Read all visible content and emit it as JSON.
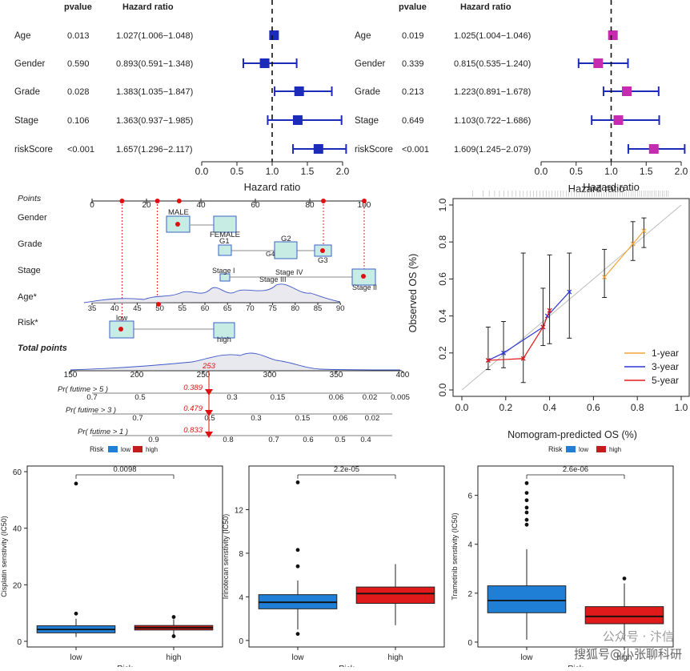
{
  "chart_data": [
    {
      "type": "forest",
      "id": "forest_univariate",
      "headers": {
        "pvalue": "pvalue",
        "hr": "Hazard ratio"
      },
      "xlabel": "Hazard ratio",
      "xlim": [
        0,
        2.0
      ],
      "ticks": [
        "0.0",
        "0.5",
        "1.0",
        "1.5",
        "2.0"
      ],
      "ref_line": 1.0,
      "color": "#1c2bb8",
      "rows": [
        {
          "label": "Age",
          "pvalue": "0.013",
          "hr_text": "1.027(1.006−1.048)",
          "hr": 1.027,
          "lo": 1.006,
          "hi": 1.048
        },
        {
          "label": "Gender",
          "pvalue": "0.590",
          "hr_text": "0.893(0.591−1.348)",
          "hr": 0.893,
          "lo": 0.591,
          "hi": 1.348
        },
        {
          "label": "Grade",
          "pvalue": "0.028",
          "hr_text": "1.383(1.035−1.847)",
          "hr": 1.383,
          "lo": 1.035,
          "hi": 1.847
        },
        {
          "label": "Stage",
          "pvalue": "0.106",
          "hr_text": "1.363(0.937−1.985)",
          "hr": 1.363,
          "lo": 0.937,
          "hi": 1.985
        },
        {
          "label": "riskScore",
          "pvalue": "<0.001",
          "hr_text": "1.657(1.296−2.117)",
          "hr": 1.657,
          "lo": 1.296,
          "hi": 2.117
        }
      ]
    },
    {
      "type": "forest",
      "id": "forest_multivariate",
      "headers": {
        "pvalue": "pvalue",
        "hr": "Hazard ratio"
      },
      "xlabel": "Hazard ratio",
      "xlim": [
        0,
        2.0
      ],
      "ticks": [
        "0.0",
        "0.5",
        "1.0",
        "1.5",
        "2.0"
      ],
      "ref_line": 1.0,
      "color": "#1c2bb8",
      "marker_color": "#c72bb0",
      "rows": [
        {
          "label": "Age",
          "pvalue": "0.019",
          "hr_text": "1.025(1.004−1.046)",
          "hr": 1.025,
          "lo": 1.004,
          "hi": 1.046
        },
        {
          "label": "Gender",
          "pvalue": "0.339",
          "hr_text": "0.815(0.535−1.240)",
          "hr": 0.815,
          "lo": 0.535,
          "hi": 1.24
        },
        {
          "label": "Grade",
          "pvalue": "0.213",
          "hr_text": "1.223(0.891−1.678)",
          "hr": 1.223,
          "lo": 0.891,
          "hi": 1.678
        },
        {
          "label": "Stage",
          "pvalue": "0.649",
          "hr_text": "1.103(0.722−1.686)",
          "hr": 1.103,
          "lo": 0.722,
          "hi": 1.686
        },
        {
          "label": "riskScore",
          "pvalue": "<0.001",
          "hr_text": "1.609(1.245−2.079)",
          "hr": 1.609,
          "lo": 1.245,
          "hi": 2.079
        }
      ]
    },
    {
      "type": "nomogram",
      "id": "nomogram",
      "points_label": "Points",
      "points_ticks": [
        "0",
        "20",
        "40",
        "60",
        "80",
        "100"
      ],
      "rows": [
        {
          "label": "Gender",
          "levels": [
            "MALE",
            "FEMALE"
          ]
        },
        {
          "label": "Grade",
          "levels": [
            "G1",
            "G2",
            "G3",
            "G4"
          ]
        },
        {
          "label": "Stage",
          "levels": [
            "Stage I",
            "Stage IV",
            "Stage III",
            "Stage II"
          ]
        },
        {
          "label": "Age*",
          "ticks": [
            "35",
            "40",
            "45",
            "50",
            "55",
            "60",
            "65",
            "70",
            "75",
            "80",
            "85",
            "90"
          ]
        },
        {
          "label": "Risk*",
          "levels": [
            "low",
            "high"
          ]
        }
      ],
      "total_points_label": "Total points",
      "total_ticks": [
        "150",
        "200",
        "250",
        "300",
        "350",
        "400"
      ],
      "total_value": "253",
      "survival_rows": [
        {
          "label": "Pr( futime > 5 )",
          "value": "0.389",
          "ticks": [
            "0.7",
            "0.5",
            "0.3",
            "0.15",
            "0.06",
            "0.02",
            "0.005"
          ]
        },
        {
          "label": "Pr( futime > 3 )",
          "value": "0.479",
          "ticks": [
            "0.7",
            "0.5",
            "0.3",
            "0.15",
            "0.06",
            "0.02"
          ]
        },
        {
          "label": "Pr( futime > 1 )",
          "value": "0.833",
          "ticks": [
            "0.9",
            "0.8",
            "0.7",
            "0.6",
            "0.5",
            "0.4"
          ]
        }
      ],
      "legend": {
        "title": "Risk",
        "items": [
          {
            "label": "low",
            "color": "#1f7fd6"
          },
          {
            "label": "high",
            "color": "#c21d1d"
          }
        ]
      }
    },
    {
      "type": "line",
      "id": "calibration",
      "title": "Hazard ratio",
      "xlabel": "Nomogram-predicted OS (%)",
      "ylabel": "Observed OS (%)",
      "xlim": [
        0,
        1.0
      ],
      "ylim": [
        0,
        1.0
      ],
      "ticks": [
        "0.0",
        "0.2",
        "0.4",
        "0.6",
        "0.8",
        "1.0"
      ],
      "series": [
        {
          "name": "1-year",
          "color": "#f3a43a",
          "x": [
            0.65,
            0.78,
            0.83
          ],
          "y": [
            0.61,
            0.79,
            0.86
          ]
        },
        {
          "name": "3-year",
          "color": "#2b35d6",
          "x": [
            0.12,
            0.19,
            0.37,
            0.39,
            0.49
          ],
          "y": [
            0.16,
            0.2,
            0.34,
            0.4,
            0.53
          ]
        },
        {
          "name": "5-year",
          "color": "#e01a1a",
          "x": [
            0.12,
            0.28,
            0.37,
            0.4
          ],
          "y": [
            0.16,
            0.17,
            0.34,
            0.43
          ]
        }
      ],
      "error_bars": [
        {
          "x": 0.12,
          "lo": 0.11,
          "hi": 0.34
        },
        {
          "x": 0.19,
          "lo": 0.12,
          "hi": 0.37
        },
        {
          "x": 0.28,
          "lo": 0.04,
          "hi": 0.74
        },
        {
          "x": 0.37,
          "lo": 0.24,
          "hi": 0.55
        },
        {
          "x": 0.4,
          "lo": 0.25,
          "hi": 0.73
        },
        {
          "x": 0.49,
          "lo": 0.28,
          "hi": 0.74
        },
        {
          "x": 0.65,
          "lo": 0.5,
          "hi": 0.76
        },
        {
          "x": 0.78,
          "lo": 0.7,
          "hi": 0.91
        },
        {
          "x": 0.83,
          "lo": 0.77,
          "hi": 0.93
        }
      ],
      "legend": {
        "title": "Risk",
        "items": [
          {
            "label": "low",
            "color": "#1f7fd6"
          },
          {
            "label": "high",
            "color": "#c21d1d"
          }
        ]
      }
    },
    {
      "type": "boxplot",
      "id": "box_cisplatin",
      "ylabel": "Cisplatin senstivity (IC50)",
      "xlabel": "Risk",
      "categories": [
        "low",
        "high"
      ],
      "ylim": [
        -2,
        62
      ],
      "yticks": [
        0,
        20,
        40,
        60
      ],
      "pvalue": "0.0098",
      "boxes": [
        {
          "name": "low",
          "color": "#1f7fd6",
          "q1": 3.0,
          "median": 4.2,
          "q3": 5.5,
          "wlo": 1.5,
          "whi": 8.0,
          "outliers": [
            9.8,
            55.8
          ]
        },
        {
          "name": "high",
          "color": "#c21d1d",
          "q1": 4.0,
          "median": 4.8,
          "q3": 5.6,
          "wlo": 1.5,
          "whi": 7.8,
          "outliers": [
            8.6,
            1.8
          ]
        }
      ]
    },
    {
      "type": "boxplot",
      "id": "box_irinotecan",
      "ylabel": "Irinotecan senstivity (IC50)",
      "xlabel": "Risk",
      "categories": [
        "low",
        "high"
      ],
      "ylim": [
        -0.6,
        16
      ],
      "yticks": [
        0,
        4,
        8,
        12
      ],
      "pvalue": "2.2e-05",
      "boxes": [
        {
          "name": "low",
          "color": "#1f7fd6",
          "q1": 2.9,
          "median": 3.5,
          "q3": 4.2,
          "wlo": 1.0,
          "whi": 5.5,
          "outliers": [
            0.6,
            6.8,
            8.3,
            14.5
          ]
        },
        {
          "name": "high",
          "color": "#e01a1a",
          "q1": 3.4,
          "median": 4.3,
          "q3": 4.9,
          "wlo": 1.4,
          "whi": 7.0,
          "outliers": []
        }
      ]
    },
    {
      "type": "boxplot",
      "id": "box_trametinib",
      "ylabel": "Trametinib senstivity (IC50)",
      "xlabel": "Risk",
      "categories": [
        "low",
        "high"
      ],
      "ylim": [
        -0.2,
        7.2
      ],
      "yticks": [
        0,
        2,
        4,
        6
      ],
      "pvalue": "2.6e-06",
      "boxes": [
        {
          "name": "low",
          "color": "#1f7fd6",
          "q1": 1.2,
          "median": 1.7,
          "q3": 2.3,
          "wlo": 0.1,
          "whi": 3.8,
          "outliers": [
            4.8,
            5.0,
            5.3,
            5.5,
            5.8,
            6.1,
            6.5
          ]
        },
        {
          "name": "high",
          "color": "#e01a1a",
          "q1": 0.75,
          "median": 1.05,
          "q3": 1.45,
          "wlo": 0.1,
          "whi": 2.4,
          "outliers": [
            2.6
          ]
        }
      ]
    }
  ],
  "watermark": {
    "line1": "公众号 · 汴信",
    "line2": "搜狐号@小张聊科研"
  }
}
